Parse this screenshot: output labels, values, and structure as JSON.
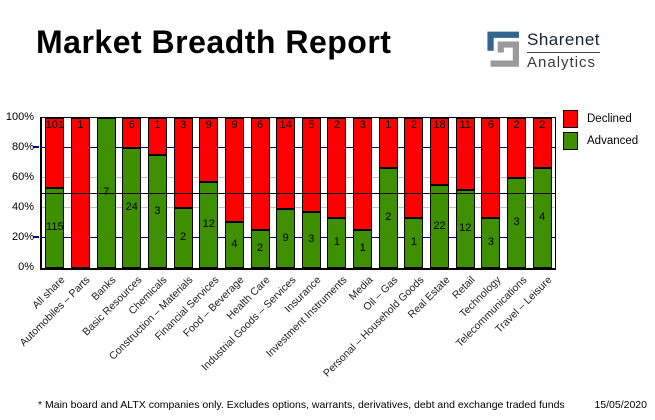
{
  "header": {
    "title": "Market Breadth Report"
  },
  "logo": {
    "name": "Sharenet",
    "subtitle": "Analytics",
    "glyph": "sharenet-s-mark",
    "glyph_blue": "#34658e",
    "glyph_gray": "#9a9a9a"
  },
  "legend": {
    "declined_label": "Declined",
    "advanced_label": "Advanced"
  },
  "chart_data": {
    "type": "bar",
    "stacked": true,
    "title": "Market Breadth Report",
    "ylabel": "",
    "xlabel": "",
    "y_axis": {
      "min": 0,
      "max": 100,
      "tick_values": [
        0,
        20,
        40,
        60,
        80,
        100
      ],
      "tick_labels": [
        "0%",
        "20%",
        "40%",
        "60%",
        "80%",
        "100%"
      ]
    },
    "gridlines": {
      "navy_at": [
        20,
        80
      ],
      "gray_at": [
        40,
        60
      ],
      "navy_color": "#000080",
      "gray_color": "#c0c0c0"
    },
    "reference_line_pct": 50,
    "legend_position": "top-right",
    "categories": [
      "All share",
      "Automobiles – Parts",
      "Banks",
      "Basic Resources",
      "Chemicals",
      "Construction – Materials",
      "Financial Services",
      "Food – Beverage",
      "Health Care",
      "Industrial Goods – Services",
      "Insurance",
      "Investment Instruments",
      "Media",
      "Oil – Gas",
      "Personal – Household Goods",
      "Real Estate",
      "Retail",
      "Technology",
      "Telecommunications",
      "Travel – Leisure"
    ],
    "series": [
      {
        "name": "Advanced",
        "color": "#3f9000",
        "counts": [
          115,
          0,
          7,
          24,
          3,
          2,
          12,
          4,
          2,
          9,
          3,
          1,
          1,
          2,
          1,
          22,
          12,
          3,
          3,
          4
        ]
      },
      {
        "name": "Declined",
        "color": "#ff0000",
        "counts": [
          101,
          1,
          0,
          6,
          1,
          3,
          9,
          9,
          6,
          14,
          5,
          2,
          3,
          1,
          2,
          18,
          11,
          6,
          2,
          2
        ]
      }
    ],
    "bar_value_note": "green segment height = advanced / (advanced + declined)"
  },
  "footer": {
    "note": "* Main board and ALTX companies only. Excludes options, warrants, derivatives, debt and exchange traded funds",
    "date": "15/05/2020"
  }
}
